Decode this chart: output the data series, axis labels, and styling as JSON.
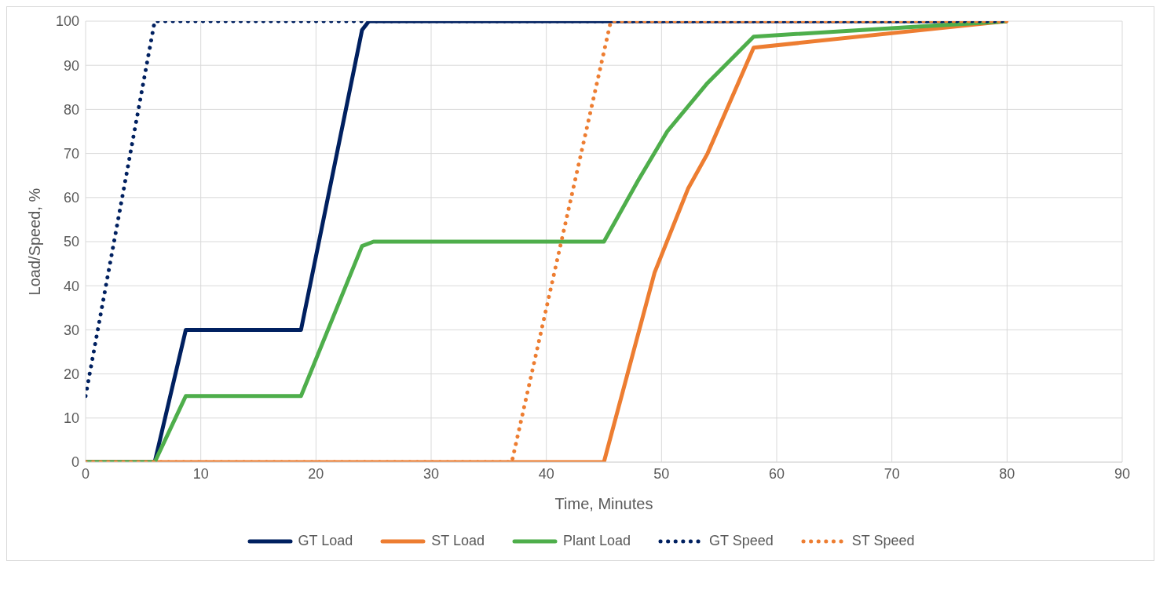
{
  "chart_data": {
    "type": "line",
    "xlabel": "Time, Minutes",
    "ylabel": "Load/Speed, %",
    "xlim": [
      0,
      90
    ],
    "xticks": [
      0,
      10,
      20,
      30,
      40,
      50,
      60,
      70,
      80,
      90
    ],
    "ylim": [
      0,
      100
    ],
    "yticks": [
      0,
      10,
      20,
      30,
      40,
      50,
      60,
      70,
      80,
      90,
      100
    ],
    "grid": true,
    "legend": "bottom",
    "marker": "none",
    "series": [
      {
        "name": "GT Load",
        "color": "#002060",
        "line_style": "solid",
        "x": [
          0,
          6,
          8.7,
          18.7,
          24,
          24.6,
          80
        ],
        "values": [
          0,
          0,
          30,
          30,
          98,
          100,
          100
        ]
      },
      {
        "name": "ST Load",
        "color": "#ed7d31",
        "line_style": "solid",
        "x": [
          0,
          45,
          49.4,
          52.3,
          54,
          58,
          80
        ],
        "values": [
          0,
          0,
          43,
          62,
          70,
          94,
          100
        ]
      },
      {
        "name": "Plant Load",
        "color": "#4eae4b",
        "line_style": "solid",
        "x": [
          0,
          6,
          8.7,
          18.7,
          24,
          25,
          45,
          48,
          50.5,
          54,
          58,
          80
        ],
        "values": [
          0,
          0,
          15,
          15,
          49,
          50,
          50,
          64,
          75,
          86,
          96.5,
          100
        ]
      },
      {
        "name": "GT Speed",
        "color": "#002060",
        "line_style": "dotted",
        "x": [
          0,
          6,
          80
        ],
        "values": [
          15,
          100,
          100
        ]
      },
      {
        "name": "ST Speed",
        "color": "#ed7d31",
        "line_style": "dotted",
        "x": [
          0,
          37,
          45.6,
          80
        ],
        "values": [
          0,
          0,
          100,
          100
        ]
      }
    ]
  }
}
